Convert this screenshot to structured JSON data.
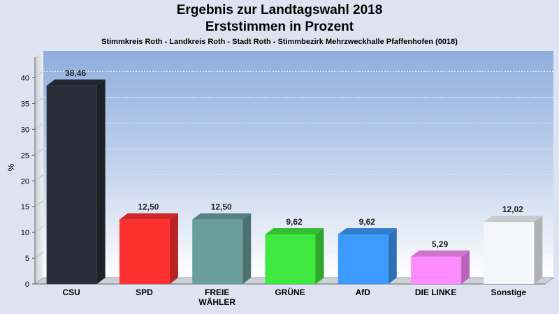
{
  "chart_data": {
    "type": "bar",
    "title": "Ergebnis zur Landtagswahl 2018",
    "subtitle": "Erststimmen in Prozent",
    "subsubtitle": "Stimmkreis Roth - Landkreis Roth - Stadt Roth - Stimmbezirk Mehrzweckhalle Pfaffenhofen (0018)",
    "ylabel": "%",
    "ylim": [
      0,
      44
    ],
    "yticks": [
      0,
      5,
      10,
      15,
      20,
      25,
      30,
      35,
      40
    ],
    "categories": [
      "CSU",
      "SPD",
      "FREIE\nWÄHLER",
      "GRÜNE",
      "AfD",
      "DIE LINKE",
      "Sonstige"
    ],
    "values": [
      38.46,
      12.5,
      12.5,
      9.62,
      9.62,
      5.29,
      12.02
    ],
    "value_labels": [
      "38,46",
      "12,50",
      "12,50",
      "9,62",
      "9,62",
      "5,29",
      "12,02"
    ],
    "colors": [
      "#2a2e38",
      "#ff3030",
      "#6a9e9a",
      "#3fe83f",
      "#3d9bff",
      "#ff8cff",
      "#f4f6fa"
    ],
    "grid": true
  }
}
